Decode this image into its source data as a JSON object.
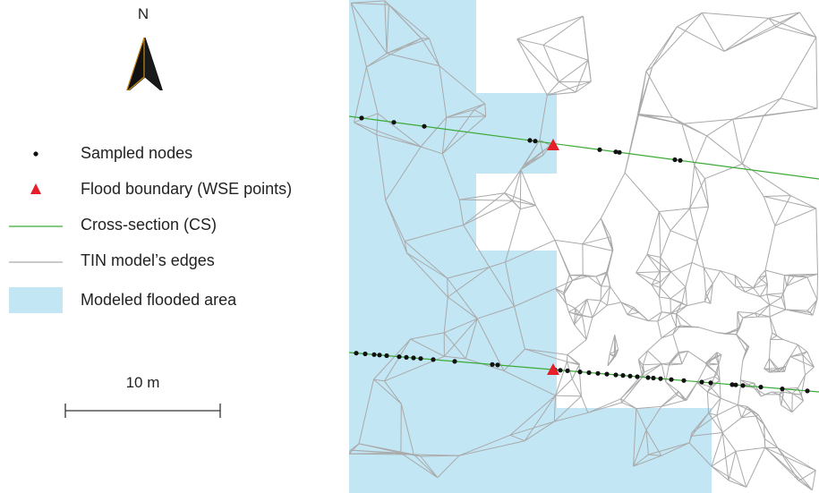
{
  "north_arrow": {
    "label": "N",
    "icon": "north-arrow-icon"
  },
  "legend": {
    "items": [
      {
        "key": "nodes",
        "label": "Sampled nodes",
        "symbol": "dot",
        "color": "#111111"
      },
      {
        "key": "wse",
        "label": "Flood boundary (WSE points)",
        "symbol": "triangle",
        "color": "#e5202a"
      },
      {
        "key": "cs",
        "label": "Cross-section (CS)",
        "symbol": "line",
        "color": "#3aaa35"
      },
      {
        "key": "tin",
        "label": "TIN model’s edges",
        "symbol": "line",
        "color": "#a9a9a9"
      },
      {
        "key": "flood",
        "label": "Modeled flooded area",
        "symbol": "box",
        "color": "#c3e6f5"
      }
    ]
  },
  "scale_bar": {
    "label": "10 m"
  },
  "colors": {
    "flood_area": "#c3e6f5",
    "tin_edges": "#a9a9a9",
    "cross_section": "#3aaa35",
    "nodes": "#111111",
    "wse_points": "#e5202a"
  }
}
